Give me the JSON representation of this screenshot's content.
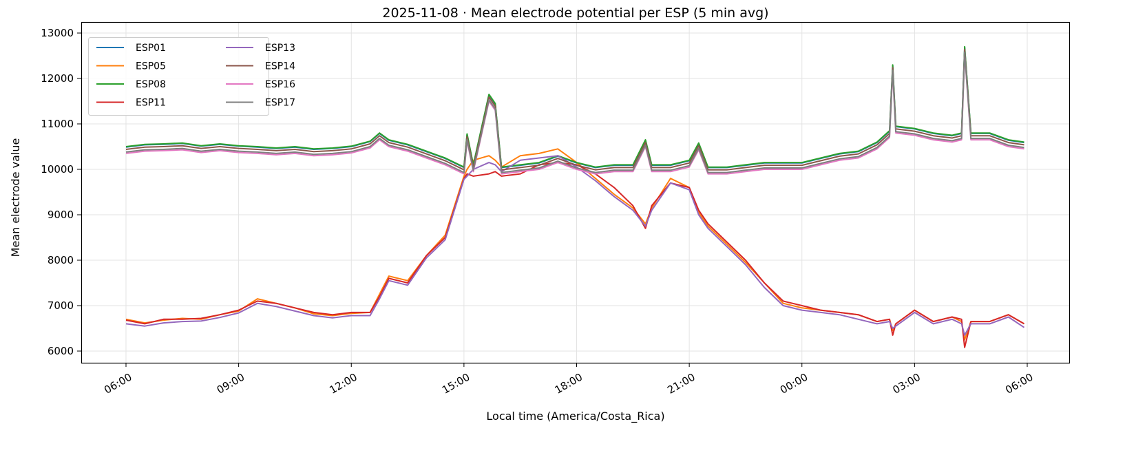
{
  "chart_data": {
    "type": "line",
    "title": "2025-11-08 · Mean electrode potential per ESP (5 min avg)",
    "xlabel": "Local time (America/Costa_Rica)",
    "ylabel": "Mean electrode value",
    "ylim": [
      5750,
      13050
    ],
    "yticks": [
      6000,
      7000,
      8000,
      9000,
      10000,
      11000,
      12000,
      13000
    ],
    "xticks": [
      "06:00",
      "09:00",
      "12:00",
      "15:00",
      "18:00",
      "21:00",
      "00:00",
      "03:00",
      "06:00"
    ],
    "grid": true,
    "legend_position": "top-left",
    "x": [
      "06:00",
      "06:30",
      "07:00",
      "07:30",
      "08:00",
      "08:30",
      "09:00",
      "09:30",
      "10:00",
      "10:30",
      "11:00",
      "11:30",
      "12:00",
      "12:30",
      "12:45",
      "13:00",
      "13:30",
      "14:00",
      "14:30",
      "15:00",
      "15:05",
      "15:15",
      "15:40",
      "15:50",
      "16:00",
      "16:30",
      "17:00",
      "17:30",
      "18:00",
      "18:30",
      "19:00",
      "19:30",
      "19:50",
      "20:00",
      "20:30",
      "21:00",
      "21:15",
      "21:30",
      "22:00",
      "22:30",
      "23:00",
      "23:30",
      "00:00",
      "00:30",
      "01:00",
      "01:30",
      "02:00",
      "02:20",
      "02:25",
      "02:30",
      "03:00",
      "03:30",
      "04:00",
      "04:15",
      "04:20",
      "04:30",
      "05:00",
      "05:30",
      "05:55"
    ],
    "series": [
      {
        "name": "ESP01",
        "color": "#1f77b4",
        "values": [
          10490,
          10540,
          10550,
          10570,
          10510,
          10550,
          10510,
          10490,
          10460,
          10490,
          10440,
          10460,
          10500,
          10610,
          10790,
          10640,
          10540,
          10390,
          10240,
          10040,
          10770,
          10090,
          11640,
          11440,
          10040,
          10090,
          10140,
          10290,
          10140,
          10040,
          10090,
          10090,
          10640,
          10090,
          10090,
          10190,
          10570,
          10040,
          10040,
          10090,
          10140,
          10140,
          10140,
          10240,
          10340,
          10390,
          10590,
          10840,
          12290,
          10940,
          10890,
          10790,
          10740,
          10790,
          12690,
          10790,
          10790,
          10640,
          10590
        ]
      },
      {
        "name": "ESP05",
        "color": "#ff7f0e",
        "values": [
          6700,
          6620,
          6680,
          6720,
          6700,
          6800,
          6880,
          7150,
          7050,
          6950,
          6820,
          6780,
          6830,
          6850,
          7250,
          7650,
          7550,
          8100,
          8550,
          9850,
          10000,
          10200,
          10300,
          10200,
          10050,
          10300,
          10350,
          10450,
          10150,
          9800,
          9450,
          9150,
          8800,
          9150,
          9800,
          9600,
          9050,
          8750,
          8350,
          7950,
          7500,
          7050,
          6950,
          6900,
          6850,
          6800,
          6650,
          6700,
          6450,
          6600,
          6900,
          6650,
          6750,
          6650,
          6250,
          6650,
          6650,
          6800,
          6600
        ]
      },
      {
        "name": "ESP08",
        "color": "#2ca02c",
        "values": [
          10500,
          10550,
          10560,
          10580,
          10520,
          10560,
          10520,
          10500,
          10470,
          10500,
          10450,
          10470,
          10510,
          10620,
          10800,
          10650,
          10550,
          10400,
          10250,
          10050,
          10780,
          10100,
          11650,
          11450,
          10050,
          10100,
          10150,
          10300,
          10150,
          10050,
          10100,
          10100,
          10650,
          10100,
          10100,
          10200,
          10580,
          10050,
          10050,
          10100,
          10150,
          10150,
          10150,
          10250,
          10350,
          10400,
          10600,
          10850,
          12300,
          10950,
          10900,
          10800,
          10750,
          10800,
          12700,
          10800,
          10800,
          10650,
          10600
        ]
      },
      {
        "name": "ESP11",
        "color": "#d62728",
        "values": [
          6680,
          6600,
          6700,
          6700,
          6720,
          6800,
          6900,
          7100,
          7050,
          6950,
          6850,
          6800,
          6850,
          6850,
          7200,
          7600,
          7500,
          8100,
          8500,
          9800,
          9900,
          9850,
          9900,
          9950,
          9850,
          9900,
          10100,
          10150,
          10100,
          9900,
          9600,
          9200,
          8700,
          9200,
          9700,
          9600,
          9100,
          8800,
          8400,
          8000,
          7500,
          7100,
          7000,
          6900,
          6850,
          6800,
          6650,
          6700,
          6350,
          6600,
          6900,
          6650,
          6750,
          6700,
          6080,
          6650,
          6650,
          6800,
          6600
        ]
      },
      {
        "name": "ESP13",
        "color": "#9467bd",
        "values": [
          6600,
          6550,
          6620,
          6650,
          6660,
          6740,
          6840,
          7050,
          6980,
          6880,
          6780,
          6730,
          6780,
          6780,
          7150,
          7550,
          7450,
          8050,
          8450,
          9780,
          9850,
          10000,
          10150,
          10100,
          9950,
          10200,
          10250,
          10300,
          10050,
          9750,
          9400,
          9100,
          8750,
          9100,
          9700,
          9550,
          9000,
          8700,
          8300,
          7900,
          7400,
          7000,
          6900,
          6850,
          6800,
          6700,
          6600,
          6650,
          6500,
          6550,
          6850,
          6600,
          6700,
          6600,
          6350,
          6600,
          6600,
          6750,
          6520
        ]
      },
      {
        "name": "ESP14",
        "color": "#8c564b",
        "values": [
          10440,
          10490,
          10500,
          10520,
          10460,
          10500,
          10460,
          10440,
          10410,
          10440,
          10390,
          10410,
          10450,
          10560,
          10740,
          10590,
          10490,
          10340,
          10190,
          9990,
          10720,
          10040,
          11590,
          11390,
          9990,
          10040,
          10090,
          10240,
          10090,
          9990,
          10040,
          10040,
          10590,
          10040,
          10040,
          10140,
          10520,
          9990,
          9990,
          10040,
          10090,
          10090,
          10090,
          10190,
          10290,
          10340,
          10540,
          10790,
          12240,
          10890,
          10840,
          10740,
          10690,
          10740,
          12640,
          10740,
          10740,
          10590,
          10540
        ]
      },
      {
        "name": "ESP16",
        "color": "#e377c2",
        "values": [
          10350,
          10400,
          10410,
          10430,
          10370,
          10410,
          10370,
          10350,
          10320,
          10350,
          10300,
          10320,
          10360,
          10470,
          10650,
          10500,
          10400,
          10250,
          10100,
          9900,
          10630,
          9950,
          11500,
          11300,
          9900,
          9950,
          10000,
          10150,
          10000,
          9900,
          9950,
          9950,
          10500,
          9950,
          9950,
          10050,
          10430,
          9900,
          9900,
          9950,
          10000,
          10000,
          10000,
          10100,
          10200,
          10250,
          10450,
          10700,
          12150,
          10800,
          10750,
          10650,
          10600,
          10650,
          12550,
          10650,
          10650,
          10500,
          10450
        ]
      },
      {
        "name": "ESP17",
        "color": "#7f7f7f",
        "values": [
          10380,
          10430,
          10440,
          10460,
          10400,
          10440,
          10400,
          10380,
          10350,
          10380,
          10330,
          10350,
          10390,
          10500,
          10680,
          10530,
          10430,
          10280,
          10130,
          9930,
          10660,
          9980,
          11530,
          11330,
          9930,
          9980,
          10030,
          10180,
          10030,
          9930,
          9980,
          9980,
          10530,
          9980,
          9980,
          10080,
          10460,
          9930,
          9930,
          9980,
          10030,
          10030,
          10030,
          10130,
          10230,
          10280,
          10480,
          10730,
          12180,
          10830,
          10780,
          10680,
          10630,
          10680,
          12580,
          10680,
          10680,
          10530,
          10480
        ]
      }
    ]
  }
}
